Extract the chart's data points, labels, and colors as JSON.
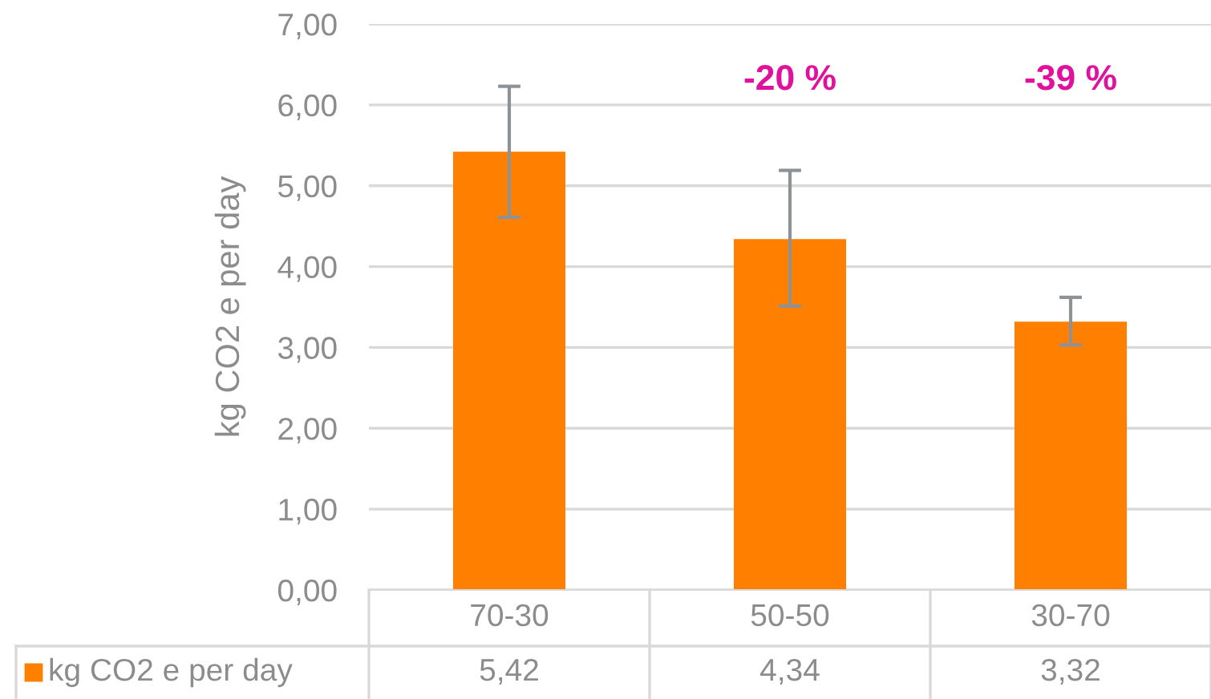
{
  "chart_data": {
    "type": "bar",
    "ylabel": "kg CO2 e per day",
    "categories": [
      "70-30",
      "50-50",
      "30-70"
    ],
    "series": [
      {
        "name": "kg CO2 e per day",
        "color": "#ff8000",
        "values": [
          5.42,
          4.34,
          3.32
        ],
        "errors": [
          [
            4.61,
            6.23
          ],
          [
            3.51,
            5.19
          ],
          [
            3.03,
            3.62
          ]
        ],
        "value_labels": [
          "5,42",
          "4,34",
          "3,32"
        ]
      }
    ],
    "ylim": [
      0,
      7
    ],
    "yticks": [
      {
        "value": 0,
        "label": "0,00"
      },
      {
        "value": 1,
        "label": "1,00"
      },
      {
        "value": 2,
        "label": "2,00"
      },
      {
        "value": 3,
        "label": "3,00"
      },
      {
        "value": 4,
        "label": "4,00"
      },
      {
        "value": 5,
        "label": "5,00"
      },
      {
        "value": 6,
        "label": "6,00"
      },
      {
        "value": 7,
        "label": "7,00"
      }
    ],
    "grid": "y",
    "annotations": [
      "-20 %",
      "-39 %"
    ]
  }
}
